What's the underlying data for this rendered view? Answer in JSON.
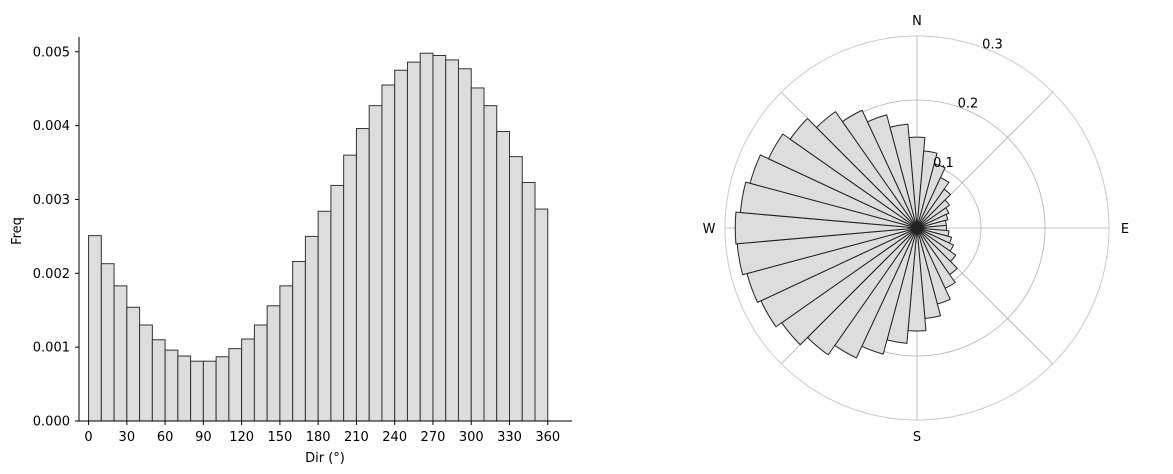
{
  "chart_data": [
    {
      "type": "bar",
      "kind": "histogram",
      "title": "",
      "xlabel": "Dir (°)",
      "ylabel": "Freq",
      "xlim": [
        -7.5,
        379
      ],
      "ylim": [
        0,
        0.0052
      ],
      "bin_width": 10,
      "bin_starts": [
        0,
        10,
        20,
        30,
        40,
        50,
        60,
        70,
        80,
        90,
        100,
        110,
        120,
        130,
        140,
        150,
        160,
        170,
        180,
        190,
        200,
        210,
        220,
        230,
        240,
        250,
        260,
        270,
        280,
        290,
        300,
        310,
        320,
        330,
        340,
        350
      ],
      "values": [
        0.00251,
        0.00213,
        0.00183,
        0.00154,
        0.0013,
        0.0011,
        0.00096,
        0.00088,
        0.00081,
        0.00081,
        0.00087,
        0.00098,
        0.00111,
        0.0013,
        0.00156,
        0.00183,
        0.00216,
        0.0025,
        0.00284,
        0.00319,
        0.0036,
        0.00396,
        0.00427,
        0.00455,
        0.00475,
        0.00486,
        0.00498,
        0.00495,
        0.00489,
        0.00477,
        0.00451,
        0.00427,
        0.00392,
        0.00358,
        0.00323,
        0.00287
      ],
      "xticks": [
        0,
        30,
        60,
        90,
        120,
        150,
        180,
        210,
        240,
        270,
        300,
        330,
        360
      ],
      "xtick_labels": [
        "0",
        "30",
        "60",
        "90",
        "120",
        "150",
        "180",
        "210",
        "240",
        "270",
        "300",
        "330",
        "360"
      ],
      "yticks": [
        0,
        0.001,
        0.002,
        0.003,
        0.004,
        0.005
      ],
      "ytick_labels": [
        "0.000",
        "0.001",
        "0.002",
        "0.003",
        "0.004",
        "0.005"
      ],
      "grid": false,
      "colors": {
        "fill": "#dddddd",
        "edge": "#333333"
      }
    },
    {
      "type": "polar-bar",
      "title": "",
      "direction_labels": [
        "N",
        "E",
        "S",
        "W"
      ],
      "radial_ticks": [
        0.1,
        0.2,
        0.3
      ],
      "radial_tick_labels": [
        "0.1",
        "0.2",
        "0.3"
      ],
      "rmax": 0.3,
      "bin_width_deg": 10,
      "directions_deg": [
        0,
        10,
        20,
        30,
        40,
        50,
        60,
        70,
        80,
        90,
        100,
        110,
        120,
        130,
        140,
        150,
        160,
        170,
        180,
        190,
        200,
        210,
        220,
        230,
        240,
        250,
        260,
        270,
        280,
        290,
        300,
        310,
        320,
        330,
        340,
        350
      ],
      "values": [
        0.142,
        0.121,
        0.104,
        0.087,
        0.074,
        0.062,
        0.055,
        0.05,
        0.046,
        0.046,
        0.05,
        0.056,
        0.063,
        0.074,
        0.089,
        0.104,
        0.123,
        0.142,
        0.161,
        0.181,
        0.204,
        0.224,
        0.242,
        0.258,
        0.269,
        0.275,
        0.282,
        0.284,
        0.277,
        0.27,
        0.256,
        0.242,
        0.222,
        0.203,
        0.183,
        0.163
      ],
      "grid": true,
      "colors": {
        "fill": "#dddddd",
        "edge": "#222222",
        "grid": "#b0b0b0"
      }
    }
  ]
}
